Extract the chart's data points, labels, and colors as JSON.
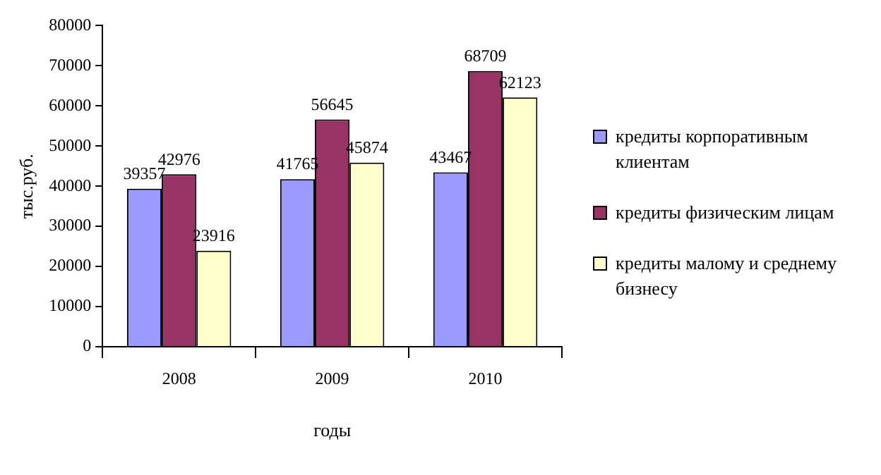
{
  "chart_data": {
    "type": "bar",
    "xlabel": "годы",
    "ylabel": "тыс.руб.",
    "categories": [
      "2008",
      "2009",
      "2010"
    ],
    "series": [
      {
        "name": "кредиты корпоративным клиентам",
        "color": "#9999ff",
        "values": [
          39357,
          41765,
          43467
        ]
      },
      {
        "name": "кредиты физическим лицам",
        "color": "#993366",
        "values": [
          42976,
          56645,
          68709
        ]
      },
      {
        "name": "кредиты малому и среднему бизнесу",
        "color": "#ffffcc",
        "values": [
          23916,
          45874,
          62123
        ]
      }
    ],
    "ylim": [
      0,
      80000
    ],
    "yticks": [
      0,
      10000,
      20000,
      30000,
      40000,
      50000,
      60000,
      70000,
      80000
    ],
    "grid": false,
    "legend": "right",
    "data_labels": true
  }
}
